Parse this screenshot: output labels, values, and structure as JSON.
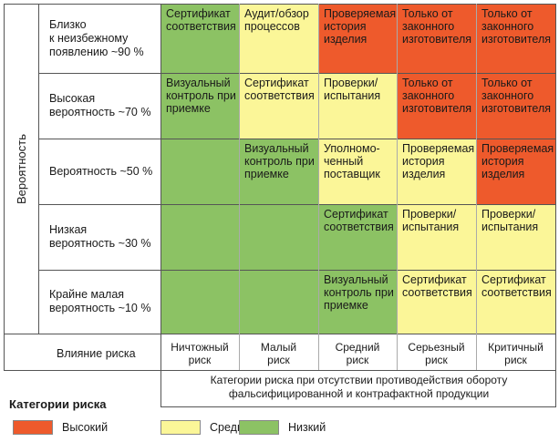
{
  "axis": {
    "y_label": "Вероятность",
    "impact_label": "Влияние риска",
    "caption": "Категории риска при отсутствии противодействия обороту\nфальсифицированной и контрафактной продукции"
  },
  "rows": [
    {
      "label": "Близко\nк неизбежному\nпоявлению ~90 %"
    },
    {
      "label": "Высокая\nвероятность ~70 %"
    },
    {
      "label": "Вероятность ~50 %"
    },
    {
      "label": "Низкая\nвероятность ~30 %"
    },
    {
      "label": "Крайне малая\nвероятность ~10 %"
    }
  ],
  "columns": [
    {
      "label": "Ничтожный\nриск"
    },
    {
      "label": "Малый\nриск"
    },
    {
      "label": "Средний\nриск"
    },
    {
      "label": "Серьезный\nриск"
    },
    {
      "label": "Критичный\nриск"
    }
  ],
  "cells": [
    [
      {
        "text": "Сертификат\nсоответствия",
        "risk": "low"
      },
      {
        "text": "Аудит/обзор\nпроцессов",
        "risk": "medium"
      },
      {
        "text": "Проверяемая\nистория\nизделия",
        "risk": "high"
      },
      {
        "text": "Только от\nзаконного\nизготовителя",
        "risk": "high"
      },
      {
        "text": "Только от\nзаконного\nизготовителя",
        "risk": "high"
      }
    ],
    [
      {
        "text": "Визуальный\nконтроль при\nприемке",
        "risk": "low"
      },
      {
        "text": "Сертификат\nсоответствия",
        "risk": "medium"
      },
      {
        "text": "Проверки/\nиспытания",
        "risk": "medium"
      },
      {
        "text": "Только от\nзаконного\nизготовителя",
        "risk": "high"
      },
      {
        "text": "Только от\nзаконного\nизготовителя",
        "risk": "high"
      }
    ],
    [
      {
        "text": "",
        "risk": "low"
      },
      {
        "text": "Визуальный\nконтроль при\nприемке",
        "risk": "low"
      },
      {
        "text": "Уполномо-\nченный\nпоставщик",
        "risk": "medium"
      },
      {
        "text": "Проверяемая\nистория\nизделия",
        "risk": "medium"
      },
      {
        "text": "Проверяемая\nистория\nизделия",
        "risk": "high"
      }
    ],
    [
      {
        "text": "",
        "risk": "low"
      },
      {
        "text": "",
        "risk": "low"
      },
      {
        "text": "Сертификат\nсоответствия",
        "risk": "low"
      },
      {
        "text": "Проверки/\nиспытания",
        "risk": "medium"
      },
      {
        "text": "Проверки/\nиспытания",
        "risk": "medium"
      }
    ],
    [
      {
        "text": "",
        "risk": "low"
      },
      {
        "text": "",
        "risk": "low"
      },
      {
        "text": "Визуальный\nконтроль при\nприемке",
        "risk": "low"
      },
      {
        "text": "Сертификат\nсоответствия",
        "risk": "medium"
      },
      {
        "text": "Сертификат\nсоответствия",
        "risk": "medium"
      }
    ]
  ],
  "legend": {
    "title": "Категории риска",
    "items": [
      {
        "label": "Высокий",
        "color": "#ee5a2c"
      },
      {
        "label": "Средний",
        "color": "#fbf698"
      },
      {
        "label": "Низкий",
        "color": "#8cc264"
      }
    ]
  }
}
